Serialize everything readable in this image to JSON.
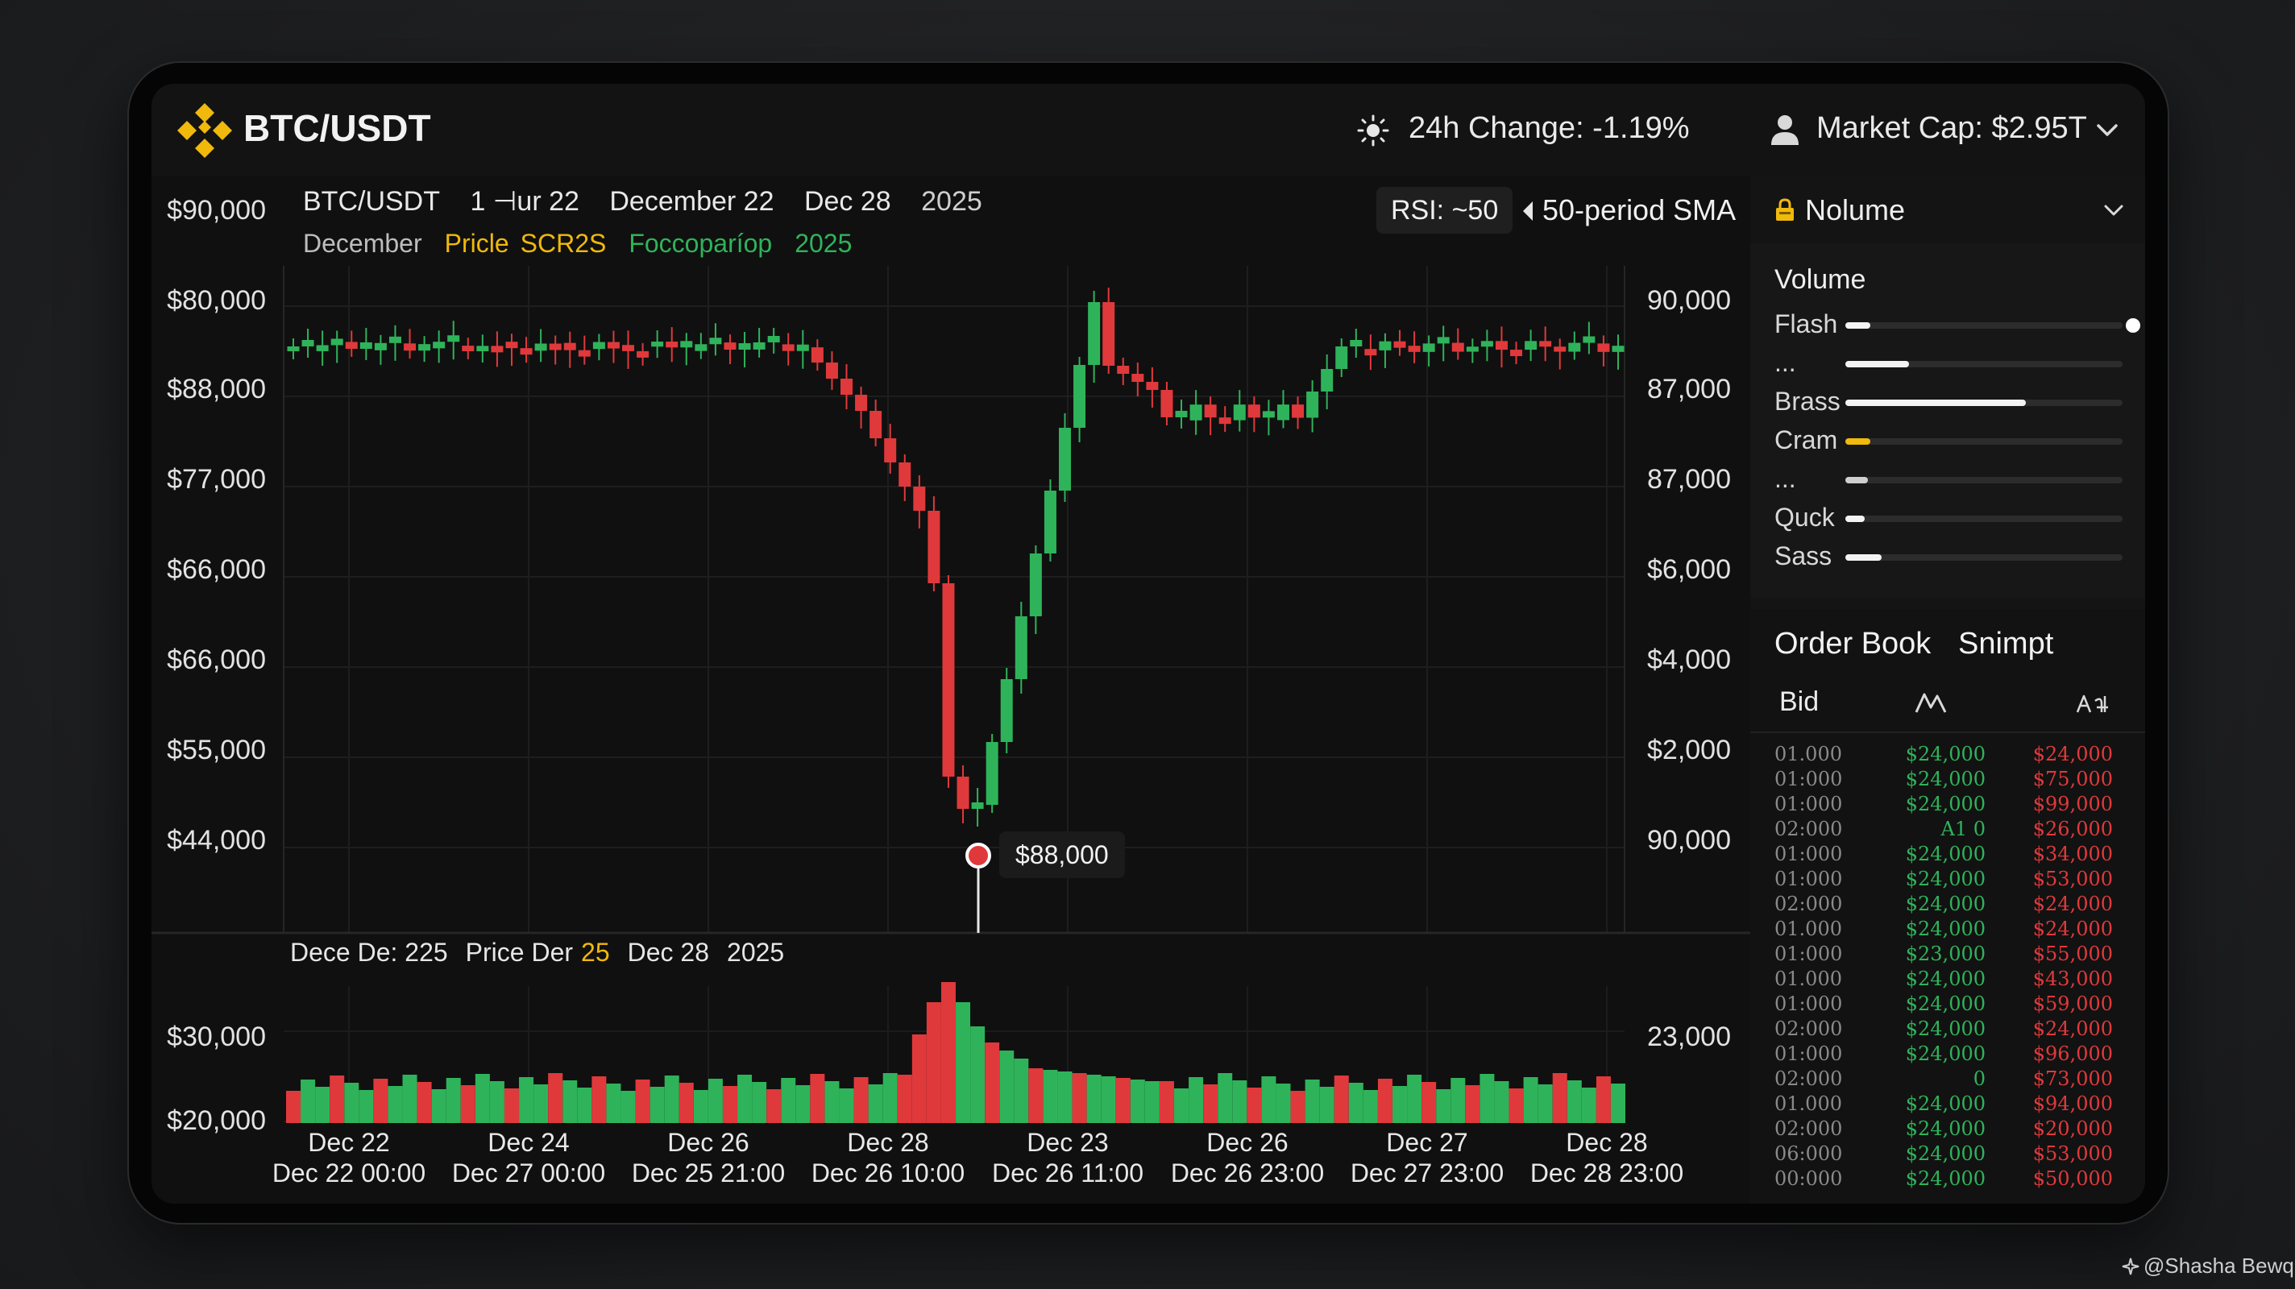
{
  "header": {
    "pair": "BTC/USDT",
    "change": "24h Change: -1.19%",
    "market_cap": "Market Cap: $2.95T"
  },
  "chart_header": {
    "row1": [
      "BTC/USDT",
      "1 ⊣ur 22",
      "December 22",
      "Dec 28",
      "2025"
    ],
    "row2": [
      {
        "text": "December",
        "color": "#bdbdbd"
      },
      {
        "text": "Pricle",
        "color": "#f0b90b"
      },
      {
        "text": "SCR2S",
        "color": "#f0b90b"
      },
      {
        "text": "Foccoparíop",
        "color": "#2fb35a"
      },
      {
        "text": "2025",
        "color": "#2fb35a"
      }
    ],
    "rsi": "RSI: ~50",
    "sma": "50-period SMA"
  },
  "price_axis_left": [
    "$90,000",
    "$80,000",
    "$88,000",
    "$77,000",
    "$66,000",
    "$66,000",
    "$55,000",
    "$44,000"
  ],
  "price_axis_right": [
    "90,000",
    "87,000",
    "87,000",
    "$6,000",
    "$4,000",
    "$2,000",
    "90,000"
  ],
  "tooltip": "$88,000",
  "volume_header": [
    {
      "text": "Dece De: 225",
      "color": "#e6e6e6"
    },
    {
      "text": "Price Der",
      "color": "#e6e6e6"
    },
    {
      "text": "25",
      "color": "#f0b90b"
    },
    {
      "text": "Dec 28",
      "color": "#e6e6e6"
    },
    {
      "text": "2025",
      "color": "#e6e6e6"
    }
  ],
  "volume_axis_left": [
    "$30,000",
    "$20,000"
  ],
  "volume_axis_right": [
    "23,000"
  ],
  "x_axis": [
    {
      "top": "Dec 22",
      "bottom": "Dec 22 00:00"
    },
    {
      "top": "Dec 24",
      "bottom": "Dec 27 00:00"
    },
    {
      "top": "Dec 26",
      "bottom": "Dec 25 21:00"
    },
    {
      "top": "Dec 28",
      "bottom": "Dec 26 10:00"
    },
    {
      "top": "Dec 23",
      "bottom": "Dec 26 11:00"
    },
    {
      "top": "Dec 26",
      "bottom": "Dec 26 23:00"
    },
    {
      "top": "Dec 27",
      "bottom": "Dec 27 23:00"
    },
    {
      "top": "Dec 28",
      "bottom": "Dec 28 23:00"
    }
  ],
  "colors": {
    "up": "#2fb35a",
    "down": "#e0393b",
    "accent": "#f0b90b",
    "tooltip_dot": "#e0393b"
  },
  "chart_data": {
    "type": "candlestick",
    "price_scale_note": "price relative index (0 = bottom of plot, 100 = top)",
    "candles": [
      [
        87,
        88
      ],
      [
        88,
        86
      ],
      [
        86,
        88
      ],
      [
        87,
        88
      ],
      [
        88,
        87
      ]
    ],
    "volume": []
  },
  "panel": {
    "dropdown_label": "Nolume",
    "volume_title": "Volume",
    "volume_rows": [
      {
        "label": "Flash",
        "fill": 0.09,
        "color": "#f3f3f3",
        "knob": true
      },
      {
        "label": "...",
        "fill": 0.23,
        "color": "#f3f3f3",
        "knob": false
      },
      {
        "label": "Brass",
        "fill": 0.65,
        "color": "#f3f3f3",
        "knob": false
      },
      {
        "label": "Cram",
        "fill": 0.09,
        "color": "#f0b90b",
        "knob": false
      },
      {
        "label": "...",
        "fill": 0.08,
        "color": "#cfcfcf",
        "knob": false
      },
      {
        "label": "Quck",
        "fill": 0.07,
        "color": "#f3f3f3",
        "knob": false
      },
      {
        "label": "Sass",
        "fill": 0.13,
        "color": "#f3f3f3",
        "knob": false
      }
    ],
    "orderbook_tabs": [
      "Order Book",
      "Snimpt"
    ],
    "orderbook_header": "Bid",
    "orderbook_rows": [
      [
        "01.000",
        "$24,000",
        "$24,000"
      ],
      [
        "01:000",
        "$24,000",
        "$75,000"
      ],
      [
        "01:000",
        "$24,000",
        "$99,000"
      ],
      [
        "02:000",
        "A1 0",
        "$26,000"
      ],
      [
        "01:000",
        "$24,000",
        "$34,000"
      ],
      [
        "01:000",
        "$24,000",
        "$53,000"
      ],
      [
        "02:000",
        "$24,000",
        "$24,000"
      ],
      [
        "01.000",
        "$24,000",
        "$24,000"
      ],
      [
        "01:000",
        "$23,000",
        "$55,000"
      ],
      [
        "01.000",
        "$24,000",
        "$43,000"
      ],
      [
        "01:000",
        "$24,000",
        "$59,000"
      ],
      [
        "02:000",
        "$24,000",
        "$24,000"
      ],
      [
        "01:000",
        "$24,000",
        "$96,000"
      ],
      [
        "02:000",
        "0",
        "$73,000"
      ],
      [
        "01.000",
        "$24,000",
        "$94,000"
      ],
      [
        "02:000",
        "$24,000",
        "$20,000"
      ],
      [
        "06:000",
        "$24,000",
        "$53,000"
      ],
      [
        "00:000",
        "$24,000",
        "$50,000"
      ]
    ]
  },
  "watermark": "@Shasha Bewq"
}
